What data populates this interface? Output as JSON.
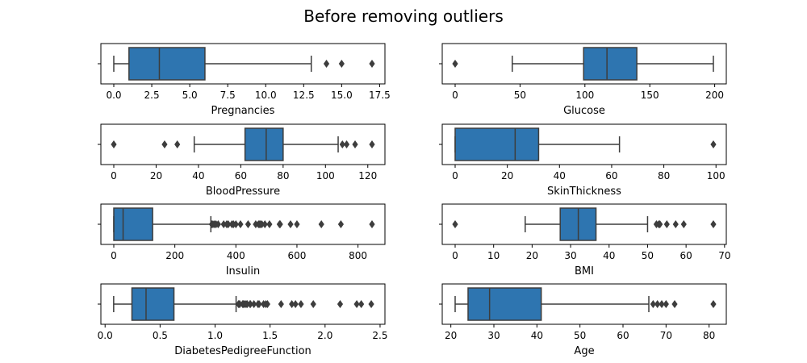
{
  "title": "Before removing outliers",
  "colors": {
    "box_fill": "#2e75b0",
    "line": "#3d3d3d",
    "axis": "#000000"
  },
  "chart_data": [
    {
      "type": "box",
      "xlabel": "Pregnancies",
      "xlim": [
        -0.85,
        17.85
      ],
      "ticks": [
        0.0,
        2.5,
        5.0,
        7.5,
        10.0,
        12.5,
        15.0,
        17.5
      ],
      "tick_labels": [
        "0.0",
        "2.5",
        "5.0",
        "7.5",
        "10.0",
        "12.5",
        "15.0",
        "17.5"
      ],
      "whisker_low": 0,
      "q1": 1,
      "median": 3,
      "q3": 6,
      "whisker_high": 13,
      "outliers": [
        14,
        15,
        17
      ]
    },
    {
      "type": "box",
      "xlabel": "Glucose",
      "xlim": [
        -9.95,
        208.95
      ],
      "ticks": [
        0,
        50,
        100,
        150,
        200
      ],
      "tick_labels": [
        "0",
        "50",
        "100",
        "150",
        "200"
      ],
      "whisker_low": 44,
      "q1": 99,
      "median": 117,
      "q3": 140,
      "whisker_high": 199,
      "outliers": [
        0
      ]
    },
    {
      "type": "box",
      "xlabel": "BloodPressure",
      "xlim": [
        -6.1,
        128.1
      ],
      "ticks": [
        0,
        20,
        40,
        60,
        80,
        100,
        120
      ],
      "tick_labels": [
        "0",
        "20",
        "40",
        "60",
        "80",
        "100",
        "120"
      ],
      "whisker_low": 38,
      "q1": 62,
      "median": 72,
      "q3": 80,
      "whisker_high": 106,
      "outliers": [
        0,
        24,
        30,
        108,
        110,
        114,
        122
      ]
    },
    {
      "type": "box",
      "xlabel": "SkinThickness",
      "xlim": [
        -4.95,
        103.95
      ],
      "ticks": [
        0,
        20,
        40,
        60,
        80,
        100
      ],
      "tick_labels": [
        "0",
        "20",
        "40",
        "60",
        "80",
        "100"
      ],
      "whisker_low": 0,
      "q1": 0,
      "median": 23,
      "q3": 32,
      "whisker_high": 63,
      "outliers": [
        99
      ]
    },
    {
      "type": "box",
      "xlabel": "Insulin",
      "xlim": [
        -42.3,
        888.3
      ],
      "ticks": [
        0,
        200,
        400,
        600,
        800
      ],
      "tick_labels": [
        "0",
        "200",
        "400",
        "600",
        "800"
      ],
      "whisker_low": 0,
      "q1": 0,
      "median": 30.5,
      "q3": 127.25,
      "whisker_high": 318,
      "outliers": [
        321,
        325,
        330,
        335,
        342,
        360,
        370,
        375,
        387,
        392,
        400,
        415,
        440,
        465,
        474,
        478,
        480,
        485,
        495,
        510,
        543,
        545,
        579,
        600,
        680,
        744,
        846
      ]
    },
    {
      "type": "box",
      "xlabel": "BMI",
      "xlim": [
        -3.355,
        70.455
      ],
      "ticks": [
        0,
        10,
        20,
        30,
        40,
        50,
        60,
        70
      ],
      "tick_labels": [
        "0",
        "10",
        "20",
        "30",
        "40",
        "50",
        "60",
        "70"
      ],
      "whisker_low": 18.2,
      "q1": 27.3,
      "median": 32.0,
      "q3": 36.6,
      "whisker_high": 50.0,
      "outliers": [
        0,
        52.3,
        52.9,
        53.2,
        55.0,
        57.3,
        59.4,
        67.1
      ]
    },
    {
      "type": "box",
      "xlabel": "DiabetesPedigreeFunction",
      "xlim": [
        -0.0383,
        2.5443
      ],
      "ticks": [
        0.0,
        0.5,
        1.0,
        1.5,
        2.0,
        2.5
      ],
      "tick_labels": [
        "0.0",
        "0.5",
        "1.0",
        "1.5",
        "2.0",
        "2.5"
      ],
      "whisker_low": 0.078,
      "q1": 0.244,
      "median": 0.3725,
      "q3": 0.626,
      "whisker_high": 1.191,
      "outliers": [
        1.213,
        1.222,
        1.224,
        1.251,
        1.258,
        1.268,
        1.282,
        1.292,
        1.318,
        1.321,
        1.353,
        1.39,
        1.4,
        1.441,
        1.461,
        1.476,
        1.6,
        1.698,
        1.731,
        1.781,
        1.893,
        2.137,
        2.288,
        2.329,
        2.42
      ]
    },
    {
      "type": "box",
      "xlabel": "Age",
      "xlim": [
        18.0,
        84.0
      ],
      "ticks": [
        20,
        30,
        40,
        50,
        60,
        70,
        80
      ],
      "tick_labels": [
        "20",
        "30",
        "40",
        "50",
        "60",
        "70",
        "80"
      ],
      "whisker_low": 21,
      "q1": 24,
      "median": 29,
      "q3": 41,
      "whisker_high": 66,
      "outliers": [
        67,
        68,
        69,
        70,
        72,
        81
      ]
    }
  ]
}
